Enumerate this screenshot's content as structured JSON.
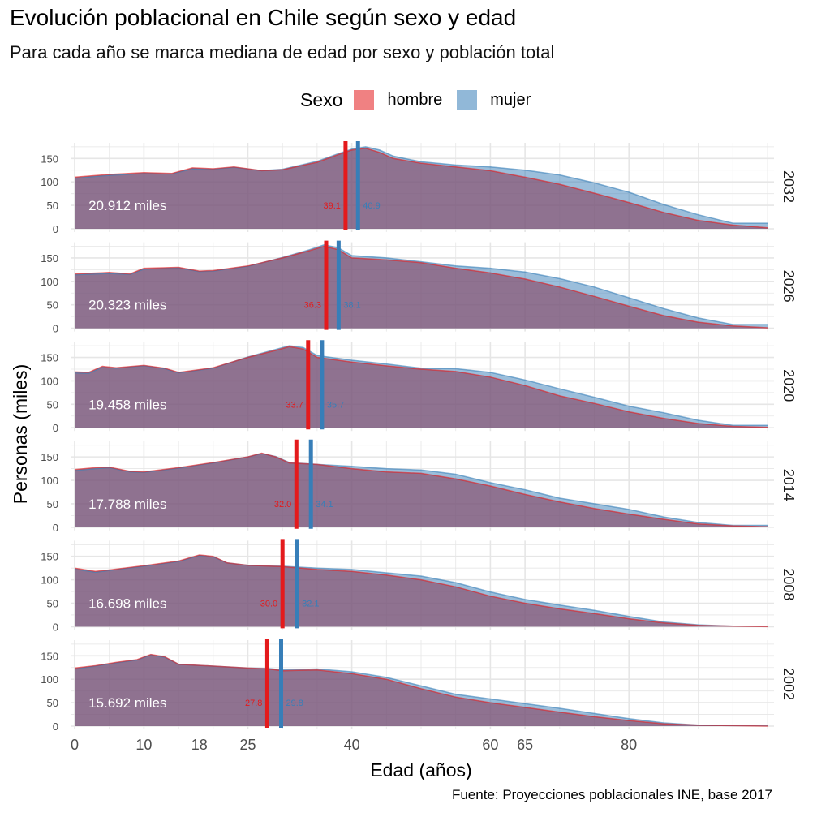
{
  "title": "Evolución poblacional en Chile según sexo y edad",
  "subtitle": "Para cada año se marca mediana de edad por sexo y población total",
  "caption": "Fuente: Proyecciones poblacionales INE, base 2017",
  "legend": {
    "title": "Sexo",
    "items": [
      {
        "label": "hombre",
        "color": "#E41A1C"
      },
      {
        "label": "mujer",
        "color": "#377EB8"
      }
    ]
  },
  "chart_data": {
    "type": "area",
    "xlabel": "Edad (años)",
    "ylabel": "Personas (miles)",
    "x_ticks": [
      0,
      10,
      18,
      25,
      40,
      60,
      65,
      80
    ],
    "x_range": [
      0,
      100
    ],
    "y_ticks": [
      0,
      50,
      100,
      150
    ],
    "y_range": [
      0,
      180
    ],
    "grid": true,
    "legend_position": "top",
    "facets": [
      {
        "year": "2032",
        "total_label": "20.912 miles",
        "median_hombre": 39.1,
        "median_mujer": 40.9,
        "median_hombre_label": "39.1",
        "median_mujer_label": "40.9",
        "hombre": [
          [
            0,
            110
          ],
          [
            5,
            116
          ],
          [
            10,
            120
          ],
          [
            14,
            118
          ],
          [
            17,
            130
          ],
          [
            20,
            128
          ],
          [
            23,
            132
          ],
          [
            27,
            124
          ],
          [
            30,
            126
          ],
          [
            35,
            142
          ],
          [
            38,
            158
          ],
          [
            40,
            168
          ],
          [
            42,
            172
          ],
          [
            44,
            163
          ],
          [
            46,
            150
          ],
          [
            50,
            140
          ],
          [
            55,
            132
          ],
          [
            60,
            124
          ],
          [
            65,
            110
          ],
          [
            70,
            95
          ],
          [
            75,
            76
          ],
          [
            80,
            56
          ],
          [
            85,
            35
          ],
          [
            90,
            18
          ],
          [
            95,
            8
          ],
          [
            100,
            2
          ]
        ],
        "mujer": [
          [
            0,
            108
          ],
          [
            5,
            114
          ],
          [
            10,
            118
          ],
          [
            14,
            117
          ],
          [
            17,
            128
          ],
          [
            20,
            127
          ],
          [
            23,
            131
          ],
          [
            27,
            124
          ],
          [
            30,
            127
          ],
          [
            35,
            144
          ],
          [
            38,
            160
          ],
          [
            40,
            170
          ],
          [
            42,
            175
          ],
          [
            44,
            168
          ],
          [
            46,
            155
          ],
          [
            50,
            143
          ],
          [
            55,
            136
          ],
          [
            60,
            132
          ],
          [
            65,
            125
          ],
          [
            70,
            115
          ],
          [
            75,
            98
          ],
          [
            80,
            78
          ],
          [
            85,
            52
          ],
          [
            90,
            30
          ],
          [
            95,
            12
          ],
          [
            100,
            12
          ]
        ]
      },
      {
        "year": "2026",
        "total_label": "20.323 miles",
        "median_hombre": 36.3,
        "median_mujer": 38.1,
        "median_hombre_label": "36.3",
        "median_mujer_label": "38.1",
        "hombre": [
          [
            0,
            116
          ],
          [
            5,
            119
          ],
          [
            8,
            116
          ],
          [
            10,
            128
          ],
          [
            15,
            130
          ],
          [
            18,
            122
          ],
          [
            20,
            123
          ],
          [
            25,
            133
          ],
          [
            30,
            150
          ],
          [
            34,
            166
          ],
          [
            36,
            175
          ],
          [
            38,
            168
          ],
          [
            40,
            150
          ],
          [
            45,
            146
          ],
          [
            50,
            140
          ],
          [
            55,
            128
          ],
          [
            60,
            118
          ],
          [
            65,
            105
          ],
          [
            70,
            88
          ],
          [
            75,
            68
          ],
          [
            80,
            47
          ],
          [
            85,
            27
          ],
          [
            90,
            13
          ],
          [
            95,
            5
          ],
          [
            100,
            1
          ]
        ],
        "mujer": [
          [
            0,
            114
          ],
          [
            5,
            117
          ],
          [
            8,
            115
          ],
          [
            10,
            126
          ],
          [
            15,
            129
          ],
          [
            18,
            121
          ],
          [
            20,
            122
          ],
          [
            25,
            132
          ],
          [
            30,
            151
          ],
          [
            34,
            168
          ],
          [
            36,
            178
          ],
          [
            38,
            172
          ],
          [
            40,
            155
          ],
          [
            45,
            150
          ],
          [
            50,
            142
          ],
          [
            55,
            133
          ],
          [
            60,
            128
          ],
          [
            65,
            120
          ],
          [
            70,
            106
          ],
          [
            75,
            88
          ],
          [
            80,
            65
          ],
          [
            85,
            42
          ],
          [
            90,
            22
          ],
          [
            95,
            8
          ],
          [
            100,
            8
          ]
        ]
      },
      {
        "year": "2020",
        "total_label": "19.458 miles",
        "median_hombre": 33.7,
        "median_mujer": 35.7,
        "median_hombre_label": "33.7",
        "median_mujer_label": "35.7",
        "hombre": [
          [
            0,
            119
          ],
          [
            2,
            118
          ],
          [
            4,
            131
          ],
          [
            6,
            128
          ],
          [
            10,
            133
          ],
          [
            13,
            127
          ],
          [
            15,
            118
          ],
          [
            18,
            124
          ],
          [
            20,
            128
          ],
          [
            25,
            150
          ],
          [
            29,
            165
          ],
          [
            31,
            173
          ],
          [
            33,
            168
          ],
          [
            35,
            150
          ],
          [
            40,
            140
          ],
          [
            45,
            132
          ],
          [
            50,
            125
          ],
          [
            55,
            120
          ],
          [
            60,
            108
          ],
          [
            65,
            90
          ],
          [
            70,
            68
          ],
          [
            75,
            52
          ],
          [
            80,
            34
          ],
          [
            85,
            20
          ],
          [
            90,
            9
          ],
          [
            95,
            3
          ],
          [
            100,
            1
          ]
        ],
        "mujer": [
          [
            0,
            117
          ],
          [
            2,
            116
          ],
          [
            4,
            129
          ],
          [
            6,
            127
          ],
          [
            10,
            132
          ],
          [
            13,
            126
          ],
          [
            15,
            117
          ],
          [
            18,
            123
          ],
          [
            20,
            127
          ],
          [
            25,
            151
          ],
          [
            29,
            167
          ],
          [
            31,
            175
          ],
          [
            33,
            171
          ],
          [
            35,
            154
          ],
          [
            40,
            144
          ],
          [
            45,
            136
          ],
          [
            50,
            127
          ],
          [
            55,
            126
          ],
          [
            60,
            118
          ],
          [
            65,
            102
          ],
          [
            70,
            83
          ],
          [
            75,
            65
          ],
          [
            80,
            46
          ],
          [
            85,
            32
          ],
          [
            90,
            16
          ],
          [
            95,
            5
          ],
          [
            100,
            5
          ]
        ]
      },
      {
        "year": "2014",
        "total_label": "17.788 miles",
        "median_hombre": 32.0,
        "median_mujer": 34.1,
        "median_hombre_label": "32.0",
        "median_mujer_label": "34.1",
        "hombre": [
          [
            0,
            123
          ],
          [
            3,
            127
          ],
          [
            5,
            128
          ],
          [
            8,
            119
          ],
          [
            10,
            118
          ],
          [
            15,
            127
          ],
          [
            20,
            138
          ],
          [
            25,
            150
          ],
          [
            27,
            158
          ],
          [
            29,
            150
          ],
          [
            31,
            137
          ],
          [
            35,
            134
          ],
          [
            40,
            125
          ],
          [
            45,
            118
          ],
          [
            50,
            115
          ],
          [
            55,
            103
          ],
          [
            60,
            88
          ],
          [
            65,
            70
          ],
          [
            70,
            54
          ],
          [
            75,
            40
          ],
          [
            80,
            28
          ],
          [
            85,
            17
          ],
          [
            90,
            7
          ],
          [
            95,
            3
          ],
          [
            100,
            1
          ]
        ],
        "mujer": [
          [
            0,
            121
          ],
          [
            3,
            125
          ],
          [
            5,
            127
          ],
          [
            8,
            118
          ],
          [
            10,
            117
          ],
          [
            15,
            126
          ],
          [
            20,
            137
          ],
          [
            25,
            150
          ],
          [
            27,
            157
          ],
          [
            29,
            151
          ],
          [
            31,
            138
          ],
          [
            35,
            134
          ],
          [
            40,
            130
          ],
          [
            45,
            125
          ],
          [
            50,
            122
          ],
          [
            55,
            113
          ],
          [
            60,
            95
          ],
          [
            65,
            80
          ],
          [
            70,
            62
          ],
          [
            75,
            50
          ],
          [
            80,
            38
          ],
          [
            85,
            22
          ],
          [
            90,
            10
          ],
          [
            95,
            4
          ],
          [
            100,
            4
          ]
        ]
      },
      {
        "year": "2008",
        "total_label": "16.698 miles",
        "median_hombre": 30.0,
        "median_mujer": 32.1,
        "median_hombre_label": "30.0",
        "median_mujer_label": "32.1",
        "hombre": [
          [
            0,
            125
          ],
          [
            3,
            118
          ],
          [
            5,
            121
          ],
          [
            10,
            130
          ],
          [
            15,
            140
          ],
          [
            18,
            153
          ],
          [
            20,
            150
          ],
          [
            22,
            136
          ],
          [
            25,
            131
          ],
          [
            30,
            128
          ],
          [
            35,
            122
          ],
          [
            40,
            118
          ],
          [
            45,
            110
          ],
          [
            50,
            100
          ],
          [
            55,
            85
          ],
          [
            60,
            65
          ],
          [
            65,
            50
          ],
          [
            70,
            38
          ],
          [
            75,
            28
          ],
          [
            80,
            17
          ],
          [
            85,
            8
          ],
          [
            90,
            3
          ],
          [
            95,
            1
          ],
          [
            100,
            0
          ]
        ],
        "mujer": [
          [
            0,
            123
          ],
          [
            3,
            116
          ],
          [
            5,
            120
          ],
          [
            10,
            129
          ],
          [
            15,
            139
          ],
          [
            18,
            152
          ],
          [
            20,
            149
          ],
          [
            22,
            136
          ],
          [
            25,
            131
          ],
          [
            30,
            129
          ],
          [
            35,
            125
          ],
          [
            40,
            122
          ],
          [
            45,
            115
          ],
          [
            50,
            108
          ],
          [
            55,
            94
          ],
          [
            60,
            74
          ],
          [
            65,
            58
          ],
          [
            70,
            46
          ],
          [
            75,
            35
          ],
          [
            80,
            22
          ],
          [
            85,
            10
          ],
          [
            90,
            4
          ],
          [
            95,
            1
          ],
          [
            100,
            1
          ]
        ]
      },
      {
        "year": "2002",
        "total_label": "15.692 miles",
        "median_hombre": 27.8,
        "median_mujer": 29.8,
        "median_hombre_label": "27.8",
        "median_mujer_label": "29.8",
        "hombre": [
          [
            0,
            124
          ],
          [
            3,
            129
          ],
          [
            6,
            136
          ],
          [
            9,
            142
          ],
          [
            11,
            153
          ],
          [
            13,
            148
          ],
          [
            15,
            132
          ],
          [
            20,
            128
          ],
          [
            25,
            124
          ],
          [
            28,
            122
          ],
          [
            30,
            118
          ],
          [
            35,
            120
          ],
          [
            40,
            112
          ],
          [
            45,
            100
          ],
          [
            50,
            80
          ],
          [
            55,
            62
          ],
          [
            60,
            50
          ],
          [
            65,
            40
          ],
          [
            70,
            30
          ],
          [
            75,
            20
          ],
          [
            80,
            12
          ],
          [
            85,
            5
          ],
          [
            90,
            2
          ],
          [
            95,
            1
          ],
          [
            100,
            0
          ]
        ],
        "mujer": [
          [
            0,
            122
          ],
          [
            3,
            128
          ],
          [
            6,
            135
          ],
          [
            9,
            141
          ],
          [
            11,
            152
          ],
          [
            13,
            147
          ],
          [
            15,
            132
          ],
          [
            20,
            128
          ],
          [
            25,
            124
          ],
          [
            28,
            123
          ],
          [
            30,
            120
          ],
          [
            35,
            122
          ],
          [
            40,
            116
          ],
          [
            45,
            104
          ],
          [
            50,
            86
          ],
          [
            55,
            68
          ],
          [
            60,
            58
          ],
          [
            65,
            48
          ],
          [
            70,
            38
          ],
          [
            75,
            27
          ],
          [
            80,
            16
          ],
          [
            85,
            7
          ],
          [
            90,
            2
          ],
          [
            95,
            1
          ],
          [
            100,
            1
          ]
        ]
      }
    ]
  }
}
